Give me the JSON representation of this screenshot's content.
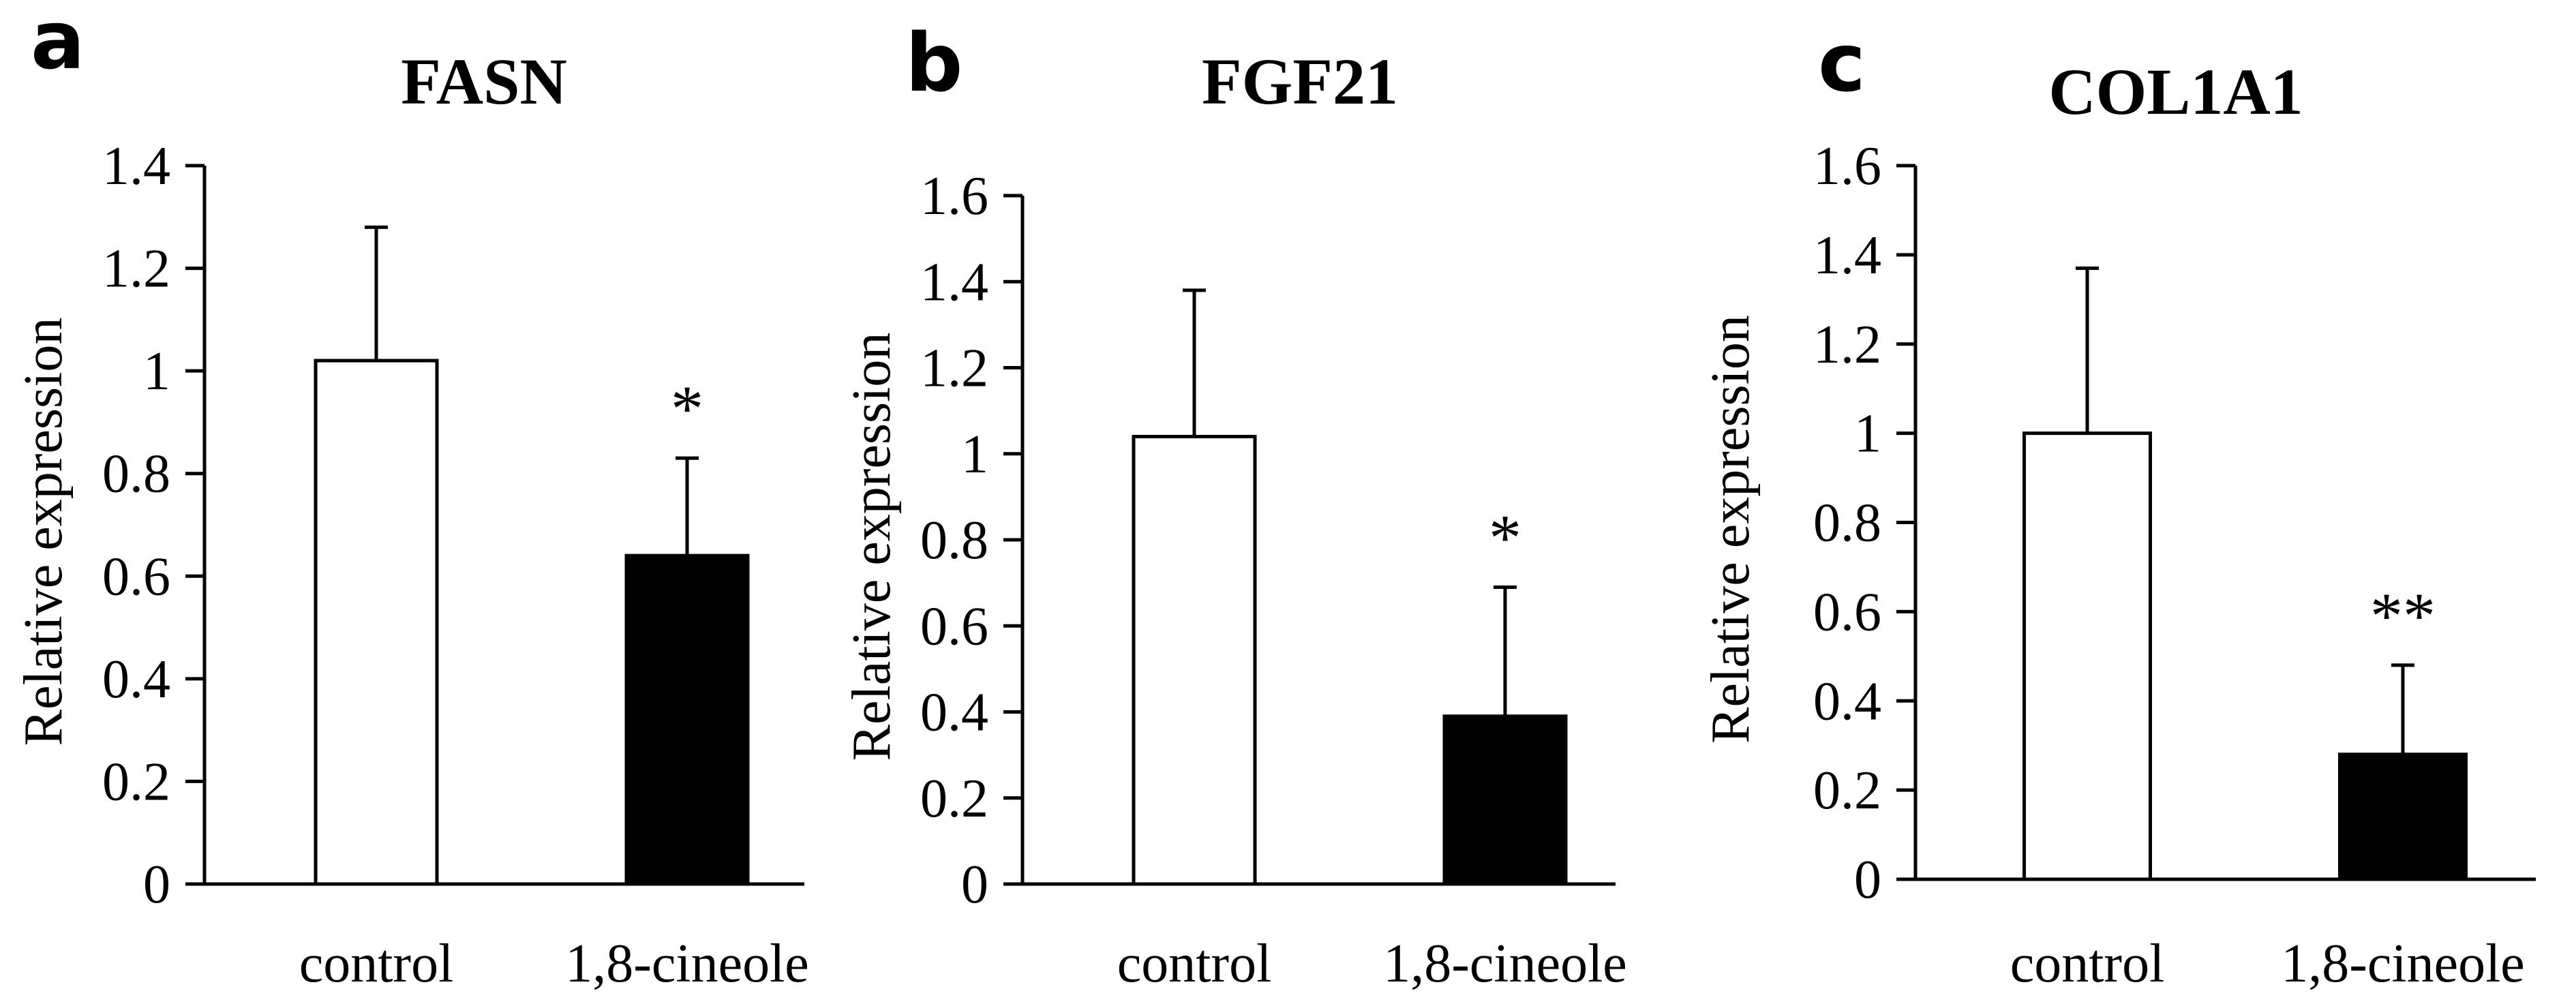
{
  "chart_data": [
    {
      "type": "bar",
      "panel": "a",
      "title": "FASN",
      "ylabel": "Relative expression",
      "xlabel": "",
      "ylim": [
        0,
        1.4
      ],
      "yticks": [
        "0",
        "0.2",
        "0.4",
        "0.6",
        "0.8",
        "1",
        "1.2",
        "1.4"
      ],
      "categories": [
        "control",
        "1,8-cineole"
      ],
      "values": [
        1.02,
        0.64
      ],
      "errors": [
        0.26,
        0.19
      ],
      "significance": [
        "",
        "*"
      ],
      "bar_colors": [
        "#ffffff",
        "#000000"
      ],
      "grid": false
    },
    {
      "type": "bar",
      "panel": "b",
      "title": "FGF21",
      "ylabel": "Relative expression",
      "xlabel": "",
      "ylim": [
        0,
        1.6
      ],
      "yticks": [
        "0",
        "0.2",
        "0.4",
        "0.6",
        "0.8",
        "1",
        "1.2",
        "1.4",
        "1.6"
      ],
      "categories": [
        "control",
        "1,8-cineole"
      ],
      "values": [
        1.04,
        0.39
      ],
      "errors": [
        0.34,
        0.3
      ],
      "significance": [
        "",
        "*"
      ],
      "bar_colors": [
        "#ffffff",
        "#000000"
      ],
      "grid": false
    },
    {
      "type": "bar",
      "panel": "c",
      "title": "COL1A1",
      "ylabel": "Relative expression",
      "xlabel": "",
      "ylim": [
        0,
        1.6
      ],
      "yticks": [
        "0",
        "0.2",
        "0.4",
        "0.6",
        "0.8",
        "1",
        "1.2",
        "1.4",
        "1.6"
      ],
      "categories": [
        "control",
        "1,8-cineole"
      ],
      "values": [
        1.0,
        0.28
      ],
      "errors": [
        0.37,
        0.2
      ],
      "significance": [
        "",
        "**"
      ],
      "bar_colors": [
        "#ffffff",
        "#000000"
      ],
      "grid": false
    }
  ]
}
